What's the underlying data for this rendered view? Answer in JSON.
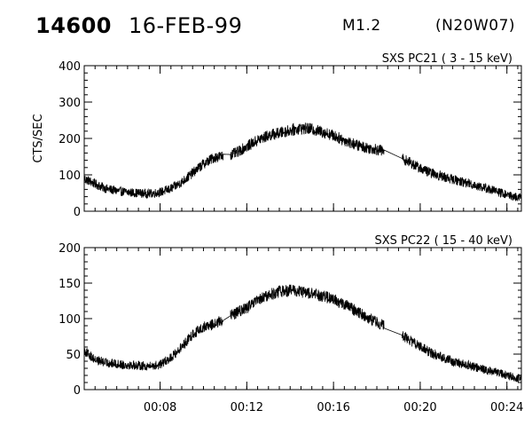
{
  "header": {
    "event_id": "14600",
    "date": "16-FEB-99",
    "goes_class": "M1.2",
    "location": "(N20W07)"
  },
  "chart_data": [
    {
      "type": "line",
      "title": "SXS PC21  (  3 - 15 keV)",
      "ylabel": "CTS/SEC",
      "xlabel": "",
      "x_range": [
        "00:04:30",
        "00:24:40"
      ],
      "ylim": [
        0,
        400
      ],
      "yticks": [
        0,
        100,
        200,
        300,
        400
      ],
      "xticks": [
        "00:08",
        "00:12",
        "00:16",
        "00:20",
        "00:24"
      ],
      "xtick_labels_shown": false,
      "grid": false,
      "data_gaps": [
        [
          "00:10:55",
          "00:11:15"
        ],
        [
          "00:18:20",
          "00:19:10"
        ]
      ],
      "series": [
        {
          "x": [
            "00:04:30",
            "00:05:00",
            "00:05:30",
            "00:06:00",
            "00:06:30",
            "00:07:00",
            "00:07:30",
            "00:08:00",
            "00:08:30",
            "00:09:00",
            "00:09:30",
            "00:10:00",
            "00:10:30",
            "00:11:00",
            "00:11:30",
            "00:12:00",
            "00:12:30",
            "00:13:00",
            "00:13:30",
            "00:14:00",
            "00:14:30",
            "00:15:00",
            "00:15:30",
            "00:16:00",
            "00:16:30",
            "00:17:00",
            "00:17:30",
            "00:18:00",
            "00:18:30",
            "00:19:00",
            "00:19:30",
            "00:20:00",
            "00:20:30",
            "00:21:00",
            "00:21:30",
            "00:22:00",
            "00:22:30",
            "00:23:00",
            "00:23:30",
            "00:24:00",
            "00:24:30"
          ],
          "values": [
            90,
            75,
            62,
            56,
            52,
            50,
            48,
            52,
            62,
            80,
            105,
            130,
            148,
            152,
            160,
            178,
            195,
            208,
            215,
            222,
            228,
            225,
            218,
            208,
            195,
            183,
            175,
            170,
            162,
            150,
            135,
            118,
            105,
            96,
            88,
            80,
            72,
            64,
            55,
            45,
            38
          ]
        }
      ]
    },
    {
      "type": "line",
      "title": "SXS PC22  ( 15 - 40 keV)",
      "ylabel": "",
      "xlabel": "",
      "x_range": [
        "00:04:30",
        "00:24:40"
      ],
      "ylim": [
        0,
        200
      ],
      "yticks": [
        0,
        50,
        100,
        150,
        200
      ],
      "xticks": [
        "00:08",
        "00:12",
        "00:16",
        "00:20",
        "00:24"
      ],
      "xtick_labels_shown": true,
      "grid": false,
      "data_gaps": [
        [
          "00:10:55",
          "00:11:15"
        ],
        [
          "00:18:20",
          "00:19:10"
        ]
      ],
      "series": [
        {
          "x": [
            "00:04:30",
            "00:05:00",
            "00:05:30",
            "00:06:00",
            "00:06:30",
            "00:07:00",
            "00:07:30",
            "00:08:00",
            "00:08:30",
            "00:09:00",
            "00:09:30",
            "00:10:00",
            "00:10:30",
            "00:11:00",
            "00:11:30",
            "00:12:00",
            "00:12:30",
            "00:13:00",
            "00:13:30",
            "00:14:00",
            "00:14:30",
            "00:15:00",
            "00:15:30",
            "00:16:00",
            "00:16:30",
            "00:17:00",
            "00:17:30",
            "00:18:00",
            "00:18:30",
            "00:19:00",
            "00:19:30",
            "00:20:00",
            "00:20:30",
            "00:21:00",
            "00:21:30",
            "00:22:00",
            "00:22:30",
            "00:23:00",
            "00:23:30",
            "00:24:00",
            "00:24:30"
          ],
          "values": [
            55,
            42,
            38,
            36,
            35,
            34,
            33,
            35,
            45,
            60,
            78,
            88,
            92,
            100,
            108,
            115,
            125,
            133,
            138,
            140,
            138,
            135,
            132,
            127,
            120,
            112,
            103,
            95,
            87,
            80,
            70,
            60,
            52,
            46,
            40,
            36,
            32,
            28,
            25,
            20,
            16
          ]
        }
      ]
    }
  ]
}
